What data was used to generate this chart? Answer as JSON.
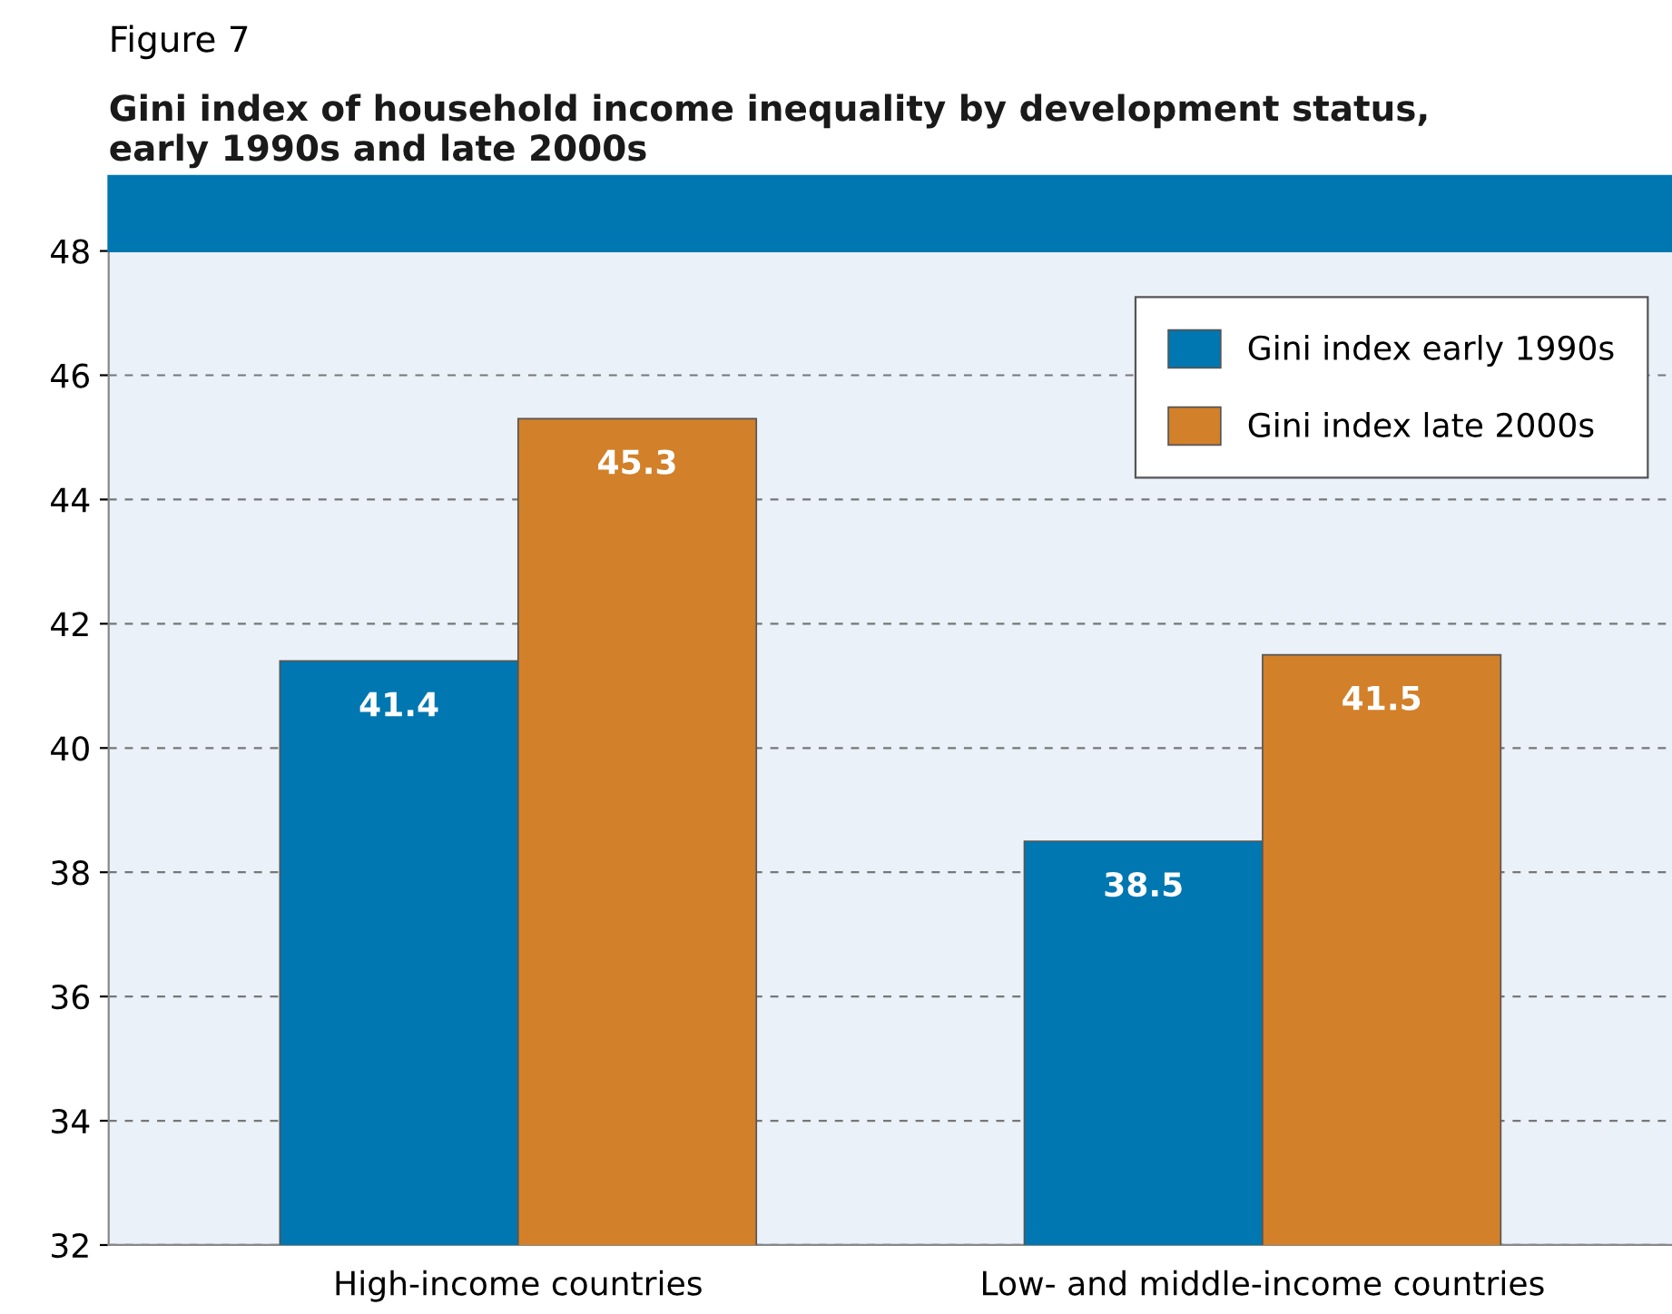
{
  "chart_data": {
    "type": "bar",
    "title": "Gini index of household income inequality by development status,\nearly 1990s and late 2000s",
    "subtitle": "Figure 7",
    "categories": [
      "High-income countries",
      "Low- and middle-income countries"
    ],
    "series": [
      {
        "name": "Gini index early 1990s",
        "color": "#0077b0",
        "values": [
          41.4,
          38.5
        ]
      },
      {
        "name": "Gini index late 2000s",
        "color": "#d2802a",
        "values": [
          45.3,
          41.5
        ]
      }
    ],
    "ylim": [
      32,
      48
    ],
    "yticks": [
      32,
      34,
      36,
      38,
      40,
      42,
      44,
      46,
      48
    ],
    "grid": "y",
    "legend": "top right",
    "data_labels": true
  }
}
